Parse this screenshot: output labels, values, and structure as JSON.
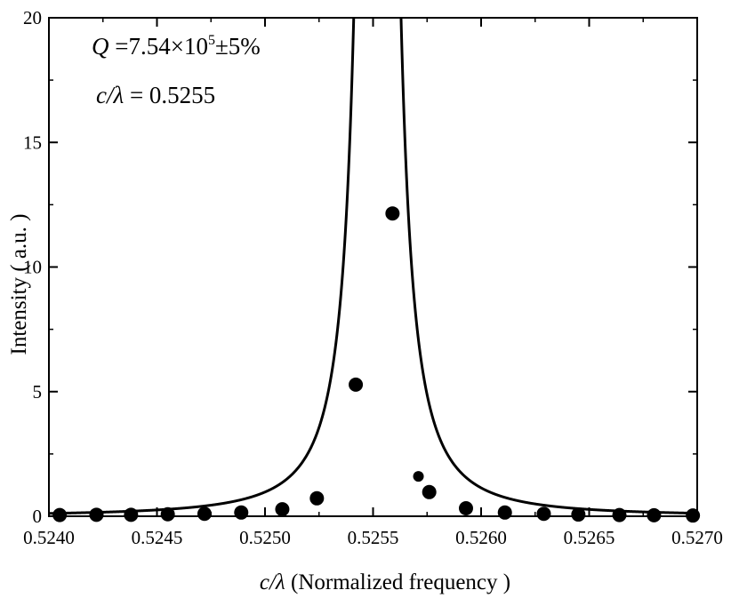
{
  "chart_data": {
    "type": "scatter",
    "xlabel": {
      "italic": "c/λ",
      "rest": " (Normalized frequency )"
    },
    "ylabel": "Intensity ( a.u. )",
    "xlim": [
      0.524,
      0.527
    ],
    "ylim": [
      0,
      20
    ],
    "x_ticks": [
      "0.5240",
      "0.5245",
      "0.5250",
      "0.5255",
      "0.5260",
      "0.5265",
      "0.5270"
    ],
    "y_ticks": [
      "0",
      "5",
      "10",
      "15",
      "20"
    ],
    "grid": false,
    "annotations": {
      "q_symbol": "Q",
      "q_value": " =7.54×10",
      "q_exponent": "5",
      "q_tolerance": "±5%",
      "freq_symbol": "c/λ",
      "freq_value": " = 0.5255"
    },
    "series": [
      {
        "kind": "markers",
        "x": [
          0.52405,
          0.52422,
          0.52438,
          0.52455,
          0.52472,
          0.52489,
          0.52508,
          0.52524,
          0.52542,
          0.52559,
          0.52571,
          0.52576,
          0.52593,
          0.52611,
          0.52629,
          0.52645,
          0.52664,
          0.5268,
          0.52698
        ],
        "y": [
          0.05,
          0.06,
          0.06,
          0.08,
          0.1,
          0.15,
          0.28,
          0.72,
          5.28,
          12.15,
          1.6,
          0.97,
          0.32,
          0.15,
          0.1,
          0.07,
          0.05,
          0.04,
          0.03
        ]
      },
      {
        "kind": "fit-line",
        "peak_center": 0.52552,
        "peak_half_width": 3.48e-05,
        "peak_amplitude": 218
      }
    ],
    "colors": {
      "markers": "#000000",
      "line": "#000000",
      "axes": "#000000"
    }
  }
}
